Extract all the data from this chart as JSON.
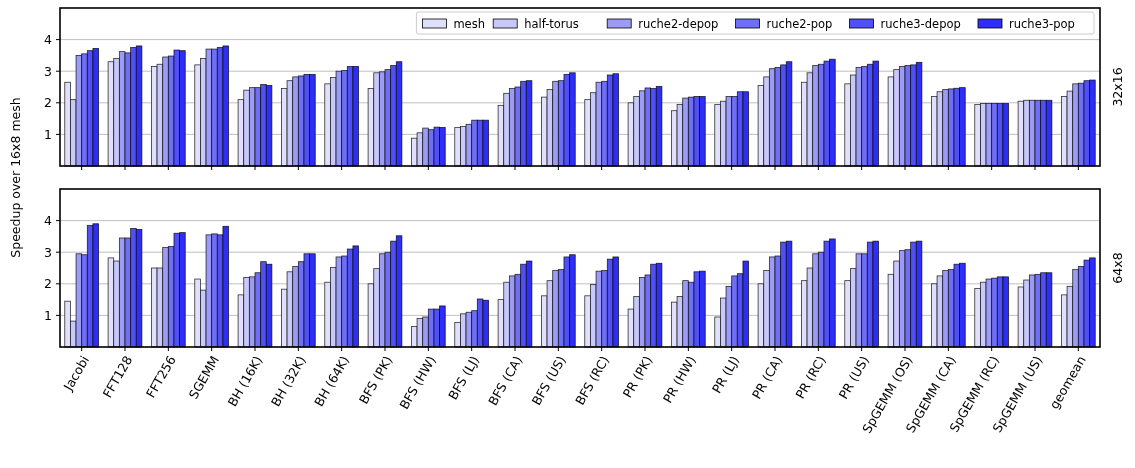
{
  "chart_data": [
    {
      "type": "bar",
      "y2label": "32x16",
      "categories": [
        null,
        null,
        null,
        null,
        null,
        null,
        null,
        null,
        null,
        null,
        null,
        null,
        null,
        null,
        null,
        null,
        null,
        null,
        null,
        null,
        null,
        null,
        null,
        null
      ],
      "ylim": [
        0,
        5
      ],
      "yticks": [
        1,
        2,
        3,
        4
      ],
      "grid": "y",
      "legend": "top right",
      "tick_labels": "y",
      "series": [
        {
          "name": "mesh",
          "color": "#e0e0fc",
          "values": [
            2.65,
            3.3,
            3.15,
            3.2,
            2.1,
            2.45,
            2.6,
            2.45,
            0.88,
            1.22,
            1.92,
            2.18,
            2.1,
            2.0,
            1.75,
            1.95,
            2.55,
            2.65,
            2.6,
            2.82,
            2.2,
            1.95,
            2.05,
            2.2
          ]
        },
        {
          "name": "half-torus",
          "color": "#c8c8fa",
          "values": [
            2.1,
            3.4,
            3.22,
            3.4,
            2.4,
            2.7,
            2.8,
            2.95,
            1.05,
            1.25,
            2.3,
            2.42,
            2.32,
            2.2,
            1.95,
            2.05,
            2.82,
            2.95,
            2.88,
            3.05,
            2.35,
            1.98,
            2.08,
            2.37
          ]
        },
        {
          "name": "ruche2-depop",
          "color": "#9c9cf6",
          "values": [
            3.5,
            3.62,
            3.45,
            3.7,
            2.48,
            2.82,
            3.0,
            2.98,
            1.2,
            1.32,
            2.45,
            2.68,
            2.65,
            2.38,
            2.15,
            2.2,
            3.08,
            3.18,
            3.12,
            3.15,
            2.42,
            1.98,
            2.08,
            2.6
          ]
        },
        {
          "name": "ruche2-pop",
          "color": "#6e6ef6",
          "values": [
            3.55,
            3.58,
            3.48,
            3.7,
            2.48,
            2.85,
            3.02,
            3.05,
            1.15,
            1.45,
            2.5,
            2.7,
            2.68,
            2.47,
            2.18,
            2.2,
            3.12,
            3.22,
            3.15,
            3.18,
            2.44,
            1.98,
            2.08,
            2.62
          ]
        },
        {
          "name": "ruche3-depop",
          "color": "#5050f6",
          "values": [
            3.65,
            3.75,
            3.67,
            3.75,
            2.58,
            2.9,
            3.15,
            3.18,
            1.23,
            1.45,
            2.68,
            2.9,
            2.88,
            2.45,
            2.2,
            2.35,
            3.2,
            3.32,
            3.22,
            3.2,
            2.46,
            1.98,
            2.08,
            2.7
          ]
        },
        {
          "name": "ruche3-pop",
          "color": "#2e2ef6",
          "values": [
            3.72,
            3.8,
            3.65,
            3.8,
            2.55,
            2.9,
            3.15,
            3.3,
            1.22,
            1.45,
            2.7,
            2.95,
            2.92,
            2.52,
            2.2,
            2.35,
            3.3,
            3.38,
            3.32,
            3.28,
            2.48,
            1.98,
            2.08,
            2.72
          ]
        }
      ]
    },
    {
      "type": "bar",
      "y2label": "64x8",
      "ylabel": "Speedup over 16x8 mesh",
      "categories": [
        "Jacobi",
        "FFT128",
        "FFT256",
        "SGEMM",
        "BH (16K)",
        "BH (32K)",
        "BH (64K)",
        "BFS (PK)",
        "BFS (HW)",
        "BFS (LJ)",
        "BFS (CA)",
        "BFS (US)",
        "BFS (RC)",
        "PR (PK)",
        "PR (HW)",
        "PR (LJ)",
        "PR (CA)",
        "PR (RC)",
        "PR (US)",
        "SpGEMM (OS)",
        "SpGEMM (CA)",
        "SpGEMM (RC)",
        "SpGEMM (US)",
        "geomean"
      ],
      "ylim": [
        0,
        5
      ],
      "yticks": [
        1,
        2,
        3,
        4
      ],
      "grid": "y",
      "series": [
        {
          "color": "#e0e0fc",
          "values": [
            1.45,
            2.82,
            2.5,
            2.15,
            1.65,
            1.83,
            2.05,
            2.0,
            0.65,
            0.78,
            1.5,
            1.62,
            1.62,
            1.2,
            1.42,
            0.95,
            2.0,
            2.1,
            2.1,
            2.3,
            2.0,
            1.85,
            1.9,
            1.65
          ]
        },
        {
          "color": "#c8c8fa",
          "values": [
            0.82,
            2.72,
            2.5,
            1.8,
            2.2,
            2.38,
            2.52,
            2.48,
            0.9,
            1.05,
            2.05,
            2.1,
            1.98,
            1.6,
            1.6,
            1.55,
            2.42,
            2.5,
            2.48,
            2.72,
            2.25,
            2.05,
            2.12,
            1.92
          ]
        },
        {
          "color": "#9c9cf6",
          "values": [
            2.95,
            3.45,
            3.15,
            3.55,
            2.22,
            2.55,
            2.85,
            2.95,
            0.95,
            1.1,
            2.25,
            2.42,
            2.4,
            2.2,
            2.1,
            1.92,
            2.85,
            2.95,
            2.95,
            3.05,
            2.42,
            2.15,
            2.28,
            2.45
          ]
        },
        {
          "color": "#6e6ef6",
          "values": [
            2.92,
            3.45,
            3.18,
            3.58,
            2.35,
            2.7,
            2.88,
            3.0,
            1.2,
            1.15,
            2.3,
            2.45,
            2.42,
            2.28,
            2.05,
            2.25,
            2.88,
            3.0,
            2.95,
            3.08,
            2.45,
            2.18,
            2.3,
            2.55
          ]
        },
        {
          "color": "#5050f6",
          "values": [
            3.85,
            3.75,
            3.6,
            3.55,
            2.7,
            2.95,
            3.1,
            3.35,
            1.2,
            1.52,
            2.62,
            2.85,
            2.78,
            2.62,
            2.38,
            2.32,
            3.32,
            3.35,
            3.32,
            3.32,
            2.62,
            2.22,
            2.35,
            2.75
          ]
        },
        {
          "color": "#2e2ef6",
          "values": [
            3.9,
            3.72,
            3.62,
            3.82,
            2.62,
            2.95,
            3.2,
            3.52,
            1.3,
            1.48,
            2.72,
            2.92,
            2.85,
            2.65,
            2.4,
            2.72,
            3.35,
            3.42,
            3.35,
            3.35,
            2.65,
            2.22,
            2.35,
            2.82
          ]
        }
      ]
    }
  ]
}
